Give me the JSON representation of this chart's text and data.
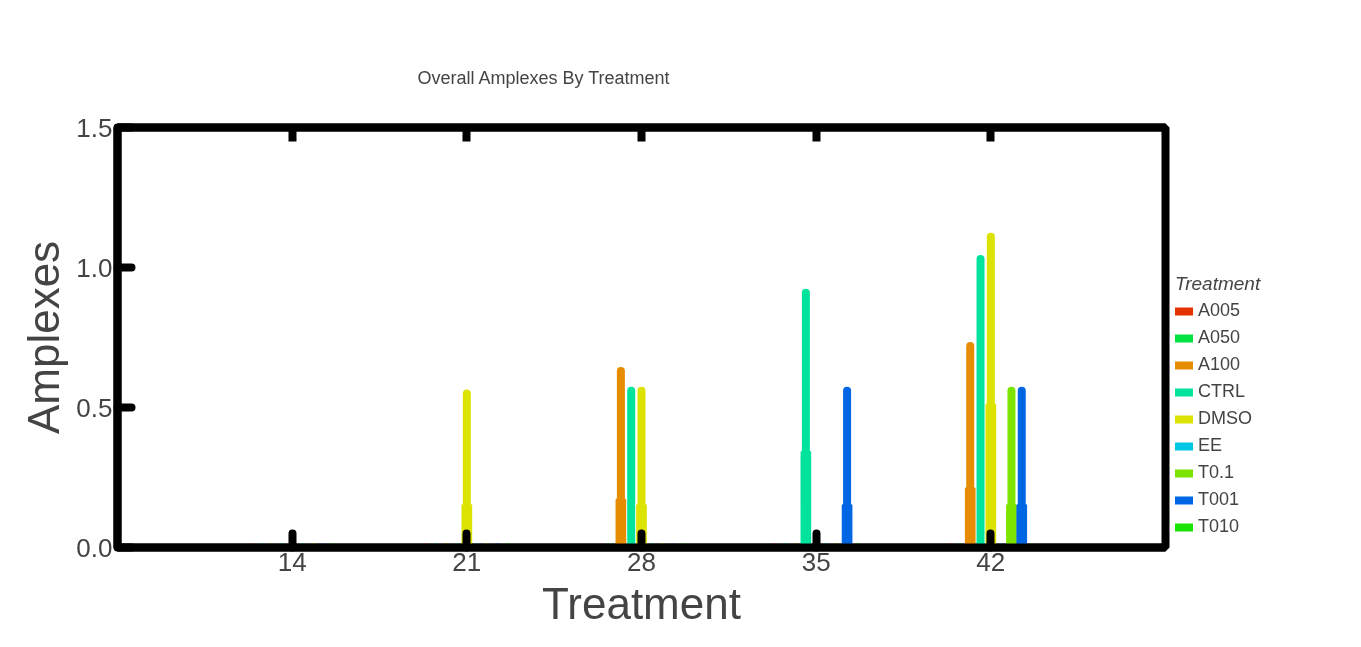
{
  "chart_data": {
    "type": "box",
    "title": "Overall Amplexes By Treatment",
    "xlabel": "Treatment",
    "ylabel": "Amplexes",
    "legend_title": "Treatment",
    "categories": [
      "14",
      "21",
      "28",
      "35",
      "42"
    ],
    "ylim": [
      0,
      1.5
    ],
    "yticks": [
      {
        "value": 0,
        "label": "0.0"
      },
      {
        "value": 0.5,
        "label": "0.5"
      },
      {
        "value": 1,
        "label": "1.0"
      },
      {
        "value": 1.5,
        "label": "1.5"
      }
    ],
    "grid": false,
    "legend": "right",
    "series": [
      {
        "name": "A005",
        "color": "#e33200",
        "boxes": [
          {
            "low": 0,
            "q1": 0,
            "median": 0,
            "q3": 0,
            "high": 0
          },
          {
            "low": 0,
            "q1": 0,
            "median": 0,
            "q3": 0,
            "high": 0
          },
          {
            "low": 0,
            "q1": 0,
            "median": 0,
            "q3": 0,
            "high": 0
          },
          {
            "low": 0,
            "q1": 0,
            "median": 0,
            "q3": 0,
            "high": 0
          },
          {
            "low": 0,
            "q1": 0,
            "median": 0,
            "q3": 0,
            "high": 0
          }
        ]
      },
      {
        "name": "A050",
        "color": "#00e340",
        "boxes": [
          {
            "low": 0,
            "q1": 0,
            "median": 0,
            "q3": 0,
            "high": 0
          },
          {
            "low": 0,
            "q1": 0,
            "median": 0,
            "q3": 0,
            "high": 0
          },
          {
            "low": 0,
            "q1": 0,
            "median": 0,
            "q3": 0,
            "high": 0
          },
          {
            "low": 0,
            "q1": 0,
            "median": 0,
            "q3": 0,
            "high": 0
          },
          {
            "low": 0,
            "q1": 0,
            "median": 0,
            "q3": 0,
            "high": 0
          }
        ]
      },
      {
        "name": "A100",
        "color": "#e68c00",
        "boxes": [
          {
            "low": 0,
            "q1": 0,
            "median": 0,
            "q3": 0,
            "high": 0
          },
          {
            "low": 0,
            "q1": 0,
            "median": 0,
            "q3": 0,
            "high": 0
          },
          {
            "low": 0,
            "q1": 0,
            "median": 0,
            "q3": 0.17,
            "high": 0.63
          },
          {
            "low": 0,
            "q1": 0,
            "median": 0,
            "q3": 0,
            "high": 0
          },
          {
            "low": 0,
            "q1": 0,
            "median": 0,
            "q3": 0.21,
            "high": 0.72
          }
        ]
      },
      {
        "name": "CTRL",
        "color": "#00e39c",
        "boxes": [
          {
            "low": 0,
            "q1": 0,
            "median": 0,
            "q3": 0,
            "high": 0
          },
          {
            "low": 0,
            "q1": 0,
            "median": 0,
            "q3": 0,
            "high": 0
          },
          {
            "low": 0,
            "q1": 0,
            "median": 0,
            "q3": 0,
            "high": 0.56
          },
          {
            "low": 0,
            "q1": 0,
            "median": 0,
            "q3": 0.34,
            "high": 0.91
          },
          {
            "low": 0,
            "q1": 0,
            "median": 0,
            "q3": 0,
            "high": 1.03
          }
        ]
      },
      {
        "name": "DMSO",
        "color": "#dde300",
        "boxes": [
          {
            "low": 0,
            "q1": 0,
            "median": 0,
            "q3": 0,
            "high": 0
          },
          {
            "low": 0,
            "q1": 0,
            "median": 0,
            "q3": 0.15,
            "high": 0.55
          },
          {
            "low": 0,
            "q1": 0,
            "median": 0,
            "q3": 0.15,
            "high": 0.56
          },
          {
            "low": 0,
            "q1": 0,
            "median": 0,
            "q3": 0,
            "high": 0
          },
          {
            "low": 0,
            "q1": 0,
            "median": 0,
            "q3": 0.51,
            "high": 1.11
          }
        ]
      },
      {
        "name": "EE",
        "color": "#00c8e3",
        "boxes": [
          {
            "low": 0,
            "q1": 0,
            "median": 0,
            "q3": 0,
            "high": 0
          },
          {
            "low": 0,
            "q1": 0,
            "median": 0,
            "q3": 0,
            "high": 0
          },
          {
            "low": 0,
            "q1": 0,
            "median": 0,
            "q3": 0,
            "high": 0
          },
          {
            "low": 0,
            "q1": 0,
            "median": 0,
            "q3": 0,
            "high": 0
          },
          {
            "low": 0,
            "q1": 0,
            "median": 0,
            "q3": 0,
            "high": 0
          }
        ]
      },
      {
        "name": "T0.1",
        "color": "#7de300",
        "boxes": [
          {
            "low": 0,
            "q1": 0,
            "median": 0,
            "q3": 0,
            "high": 0
          },
          {
            "low": 0,
            "q1": 0,
            "median": 0,
            "q3": 0,
            "high": 0
          },
          {
            "low": 0,
            "q1": 0,
            "median": 0,
            "q3": 0,
            "high": 0
          },
          {
            "low": 0,
            "q1": 0,
            "median": 0,
            "q3": 0,
            "high": 0
          },
          {
            "low": 0,
            "q1": 0,
            "median": 0,
            "q3": 0.15,
            "high": 0.56
          }
        ]
      },
      {
        "name": "T001",
        "color": "#0066e3",
        "boxes": [
          {
            "low": 0,
            "q1": 0,
            "median": 0,
            "q3": 0,
            "high": 0
          },
          {
            "low": 0,
            "q1": 0,
            "median": 0,
            "q3": 0,
            "high": 0
          },
          {
            "low": 0,
            "q1": 0,
            "median": 0,
            "q3": 0,
            "high": 0
          },
          {
            "low": 0,
            "q1": 0,
            "median": 0,
            "q3": 0.15,
            "high": 0.56
          },
          {
            "low": 0,
            "q1": 0,
            "median": 0,
            "q3": 0.15,
            "high": 0.56
          }
        ]
      },
      {
        "name": "T010",
        "color": "#19e300",
        "boxes": [
          {
            "low": 0,
            "q1": 0,
            "median": 0,
            "q3": 0,
            "high": 0
          },
          {
            "low": 0,
            "q1": 0,
            "median": 0,
            "q3": 0,
            "high": 0
          },
          {
            "low": 0,
            "q1": 0,
            "median": 0,
            "q3": 0,
            "high": 0
          },
          {
            "low": 0,
            "q1": 0,
            "median": 0,
            "q3": 0,
            "high": 0
          },
          {
            "low": 0,
            "q1": 0,
            "median": 0,
            "q3": 0,
            "high": 0
          }
        ]
      }
    ]
  }
}
